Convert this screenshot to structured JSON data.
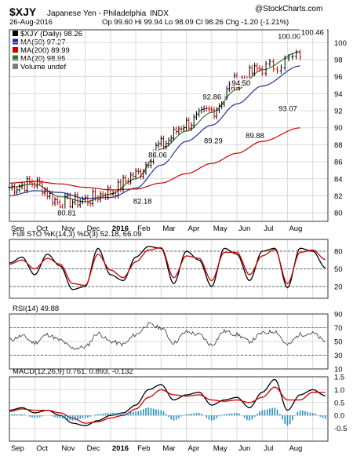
{
  "header": {
    "symbol": "$XJY",
    "name": "Japanese Yen - Philadelphia",
    "exchange": "INDX",
    "date": "26-Aug-2016",
    "quote": "Op 99.60 Hi 99.94 Lo 98.09 Cl 98.26 Chg -1.20 (-1.21%)",
    "watermark": "@StockCharts.com"
  },
  "legend": [
    {
      "label": "$XJY (Daily) 98.26",
      "color": "#000000"
    },
    {
      "label": "MA(50) 97.27",
      "color": "#1f2fa0"
    },
    {
      "label": "MA(200) 89.99",
      "color": "#cc0000"
    },
    {
      "label": "MA(20) 98.95",
      "color": "#2a7a2a"
    },
    {
      "label": "Volume undef",
      "color": "#7f7f7f"
    }
  ],
  "colors": {
    "price_up": "#000000",
    "price_down": "#cc0000",
    "ma50": "#1f2fa0",
    "ma200": "#cc0000",
    "ma20": "#2a7a2a",
    "macd_hist": "#2a8fbf"
  },
  "chart_data": [
    {
      "type": "line",
      "panel": "price",
      "ylim": [
        79,
        101.5
      ],
      "yticks": [
        80,
        82,
        84,
        86,
        88,
        90,
        92,
        94,
        96,
        98,
        100
      ],
      "x_months": [
        "Sep",
        "Oct",
        "Nov",
        "Dec",
        "2016",
        "Feb",
        "Mar",
        "Apr",
        "May",
        "Jun",
        "Jul",
        "Aug"
      ],
      "series": [
        {
          "name": "$XJY (Daily)",
          "kind": "ohlc",
          "x": [
            0,
            1,
            2,
            3,
            4,
            5,
            6,
            7,
            8,
            9,
            10,
            11.5
          ],
          "values": [
            83.0,
            83.5,
            81.2,
            81.5,
            82.5,
            84.5,
            88.0,
            90.5,
            92.0,
            95.5,
            97.0,
            98.26
          ]
        },
        {
          "name": "MA(20)",
          "x": [
            0,
            1,
            2,
            3,
            4,
            5,
            6,
            7,
            8,
            9,
            10,
            11.5
          ],
          "values": [
            83.0,
            83.4,
            81.9,
            81.3,
            82.2,
            84.0,
            87.5,
            89.6,
            91.8,
            94.5,
            96.8,
            98.95
          ]
        },
        {
          "name": "MA(50)",
          "x": [
            0,
            1,
            2,
            3,
            4,
            5,
            6,
            7,
            8,
            9,
            10,
            11.5
          ],
          "values": [
            82.0,
            82.6,
            82.4,
            81.7,
            81.8,
            82.9,
            85.6,
            88.4,
            90.3,
            92.8,
            94.9,
            97.27
          ]
        },
        {
          "name": "MA(200)",
          "x": [
            0,
            1,
            2,
            3,
            4,
            5,
            6,
            7,
            8,
            9,
            10,
            11.5
          ],
          "values": [
            83.5,
            83.7,
            83.4,
            83.0,
            82.7,
            82.8,
            83.5,
            84.6,
            85.8,
            87.0,
            88.4,
            89.99
          ]
        }
      ],
      "annotations": [
        {
          "text": "80.81",
          "x": 2.3,
          "y": 80.81,
          "pos": "below"
        },
        {
          "text": "82.18",
          "x": 5.3,
          "y": 82.18,
          "pos": "below"
        },
        {
          "text": "86.06",
          "x": 5.9,
          "y": 86.06,
          "pos": "above"
        },
        {
          "text": "89.29",
          "x": 8.1,
          "y": 89.29,
          "pos": "below"
        },
        {
          "text": "92.86",
          "x": 8.05,
          "y": 92.86,
          "pos": "above"
        },
        {
          "text": "89.88",
          "x": 9.75,
          "y": 89.88,
          "pos": "below"
        },
        {
          "text": "94.50",
          "x": 9.2,
          "y": 94.5,
          "pos": "above"
        },
        {
          "text": "93.07",
          "x": 11.05,
          "y": 93.07,
          "pos": "below"
        },
        {
          "text": "100.00",
          "x": 11.1,
          "y": 100.0,
          "pos": "above"
        },
        {
          "text": "100.46",
          "x": 12.3,
          "y": 100.46,
          "pos": "above"
        }
      ]
    },
    {
      "type": "line",
      "panel": "stochastic",
      "label": "Full STO %K(14,3) %D(3) 52.18, 66.09",
      "ylim": [
        0,
        100
      ],
      "yticks": [
        20,
        50,
        80
      ],
      "series": [
        {
          "name": "%K",
          "x": [
            0,
            0.5,
            1,
            1.5,
            2,
            2.5,
            3,
            3.5,
            4,
            4.5,
            5,
            5.5,
            6,
            6.5,
            7,
            7.5,
            8,
            8.5,
            9,
            9.5,
            10,
            10.5,
            11,
            11.5,
            12,
            12.5
          ],
          "values": [
            60,
            70,
            40,
            75,
            55,
            15,
            20,
            85,
            40,
            30,
            70,
            88,
            85,
            25,
            80,
            65,
            20,
            85,
            75,
            30,
            80,
            85,
            18,
            85,
            80,
            52
          ]
        },
        {
          "name": "%D",
          "x": [
            0,
            0.5,
            1,
            1.5,
            2,
            2.5,
            3,
            3.5,
            4,
            4.5,
            5,
            5.5,
            6,
            6.5,
            7,
            7.5,
            8,
            8.5,
            9,
            9.5,
            10,
            10.5,
            11,
            11.5,
            12,
            12.5
          ],
          "values": [
            58,
            65,
            50,
            68,
            58,
            25,
            22,
            75,
            48,
            35,
            62,
            82,
            86,
            35,
            72,
            68,
            30,
            78,
            78,
            40,
            72,
            83,
            25,
            78,
            82,
            66
          ]
        }
      ]
    },
    {
      "type": "line",
      "panel": "rsi",
      "label": "RSI(14) 49.88",
      "ylim": [
        10,
        90
      ],
      "yticks": [
        10,
        30,
        50,
        70,
        90
      ],
      "series": [
        {
          "name": "RSI(14)",
          "x": [
            0,
            0.5,
            1,
            1.5,
            2,
            2.5,
            3,
            3.5,
            4,
            4.5,
            5,
            5.5,
            6,
            6.5,
            7,
            7.5,
            8,
            8.5,
            9,
            9.5,
            10,
            10.5,
            11,
            11.5,
            12,
            12.5
          ],
          "values": [
            52,
            58,
            48,
            60,
            52,
            40,
            42,
            62,
            50,
            46,
            60,
            75,
            70,
            48,
            64,
            60,
            45,
            65,
            60,
            50,
            62,
            65,
            45,
            60,
            62,
            49.88
          ]
        }
      ]
    },
    {
      "type": "line",
      "panel": "macd",
      "label": "MACD(12,26,9) 0.761, 0.893, -0.132",
      "ylim": [
        -1.0,
        1.5
      ],
      "yticks": [
        -0.5,
        0.0,
        0.5,
        1.0,
        1.5
      ],
      "series": [
        {
          "name": "MACD",
          "x": [
            0,
            0.5,
            1,
            1.5,
            2,
            2.5,
            3,
            3.5,
            4,
            4.5,
            5,
            5.5,
            6,
            6.5,
            7,
            7.5,
            8,
            8.5,
            9,
            9.5,
            10,
            10.5,
            11,
            11.5,
            12,
            12.5
          ],
          "values": [
            0.2,
            0.3,
            0.1,
            0.2,
            0.0,
            -0.3,
            -0.4,
            -0.2,
            0.0,
            0.1,
            0.4,
            1.0,
            1.2,
            0.6,
            0.8,
            0.9,
            0.4,
            0.6,
            0.7,
            0.3,
            0.9,
            1.4,
            0.2,
            0.8,
            1.0,
            0.761
          ]
        },
        {
          "name": "Signal",
          "x": [
            0,
            0.5,
            1,
            1.5,
            2,
            2.5,
            3,
            3.5,
            4,
            4.5,
            5,
            5.5,
            6,
            6.5,
            7,
            7.5,
            8,
            8.5,
            9,
            9.5,
            10,
            10.5,
            11,
            11.5,
            12,
            12.5
          ],
          "values": [
            0.15,
            0.25,
            0.2,
            0.2,
            0.1,
            -0.1,
            -0.3,
            -0.25,
            -0.1,
            0.0,
            0.25,
            0.7,
            1.0,
            0.8,
            0.75,
            0.8,
            0.6,
            0.55,
            0.6,
            0.5,
            0.7,
            1.1,
            0.6,
            0.6,
            0.9,
            0.893
          ]
        }
      ]
    }
  ]
}
